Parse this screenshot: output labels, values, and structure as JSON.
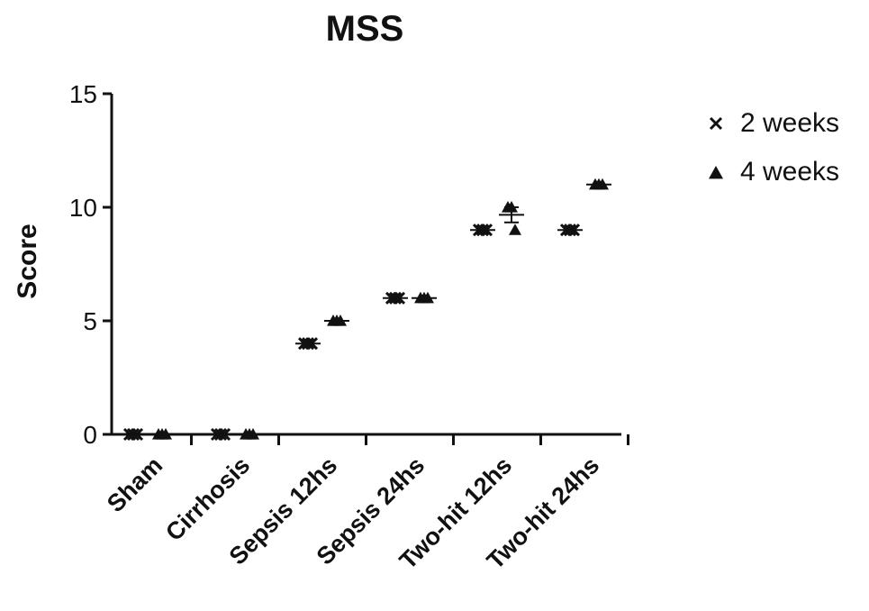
{
  "chart_data": {
    "type": "scatter",
    "title": "MSS",
    "xlabel": "",
    "ylabel": "Score",
    "ylim": [
      0,
      15
    ],
    "yticks": [
      "0",
      "5",
      "10",
      "15"
    ],
    "categories": [
      "Sham",
      "Cirrhosis",
      "Sepsis 12hs",
      "Sepsis 24hs",
      "Two-hit 12hs",
      "Two-hit 24hs"
    ],
    "grid": false,
    "legend_position": "top-right",
    "series": [
      {
        "name": "2 weeks",
        "marker": "x",
        "color": "#111111",
        "values": [
          [
            0,
            0,
            0
          ],
          [
            0,
            0,
            0
          ],
          [
            4,
            4,
            4
          ],
          [
            6,
            6,
            6
          ],
          [
            9,
            9,
            9
          ],
          [
            9,
            9,
            9
          ]
        ]
      },
      {
        "name": "4 weeks",
        "marker": "triangle",
        "color": "#111111",
        "values": [
          [
            0,
            0,
            0
          ],
          [
            0,
            0,
            0
          ],
          [
            5,
            5,
            5
          ],
          [
            6,
            6,
            6
          ],
          [
            10,
            10,
            9
          ],
          [
            11,
            11,
            11
          ]
        ]
      }
    ]
  }
}
